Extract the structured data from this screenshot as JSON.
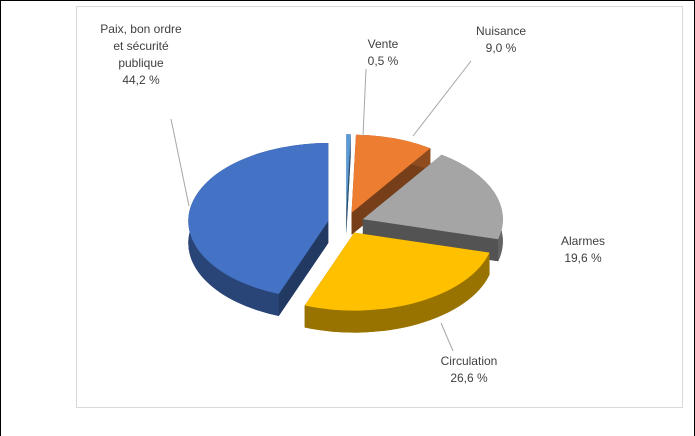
{
  "chart_data": {
    "type": "pie",
    "categories": [
      "Vente",
      "Nuisance",
      "Alarmes",
      "Circulation",
      "Paix, bon ordre et sécurité publique"
    ],
    "values": [
      0.5,
      9.0,
      19.6,
      26.6,
      44.2
    ],
    "value_labels": [
      "0,5 %",
      "9,0 %",
      "19,6 %",
      "26,6 %",
      "44,2 %"
    ],
    "colors": [
      "#5b9bd5",
      "#ed7d31",
      "#a5a5a5",
      "#ffc000",
      "#4472c4"
    ]
  }
}
